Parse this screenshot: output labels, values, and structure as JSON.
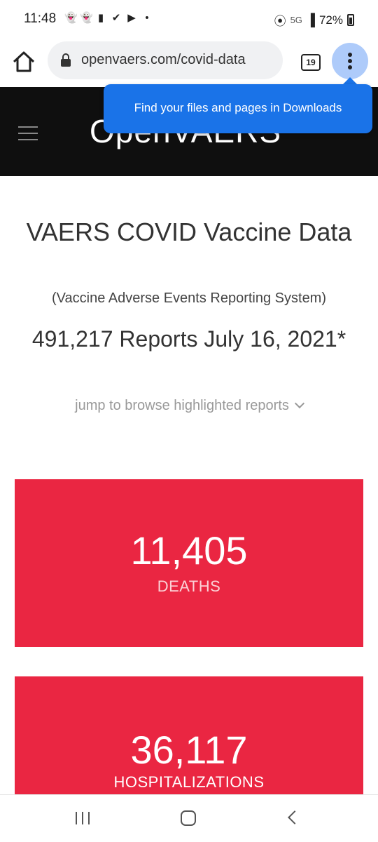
{
  "status_bar": {
    "time": "11:48",
    "network": "5G",
    "battery": "72%",
    "notification_icons": [
      "snapchat-icon",
      "snapchat-icon",
      "app-icon",
      "check-icon",
      "youtube-icon",
      "dot-icon"
    ]
  },
  "browser": {
    "url": "openvaers.com/covid-data",
    "tab_count": "19",
    "accent_color": "#aecbfa"
  },
  "tooltip": {
    "text": "Find your files and pages in Downloads",
    "color": "#1a73e8"
  },
  "site": {
    "logo": "OpenVAERS"
  },
  "main": {
    "title": "VAERS COVID Vaccine Data",
    "subtitle": "(Vaccine Adverse Events Reporting System)",
    "reports": "491,217 Reports July 16, 2021*",
    "jump_link": "jump to browse highlighted reports",
    "card_color": "#ea2642",
    "stats": [
      {
        "value": "11,405",
        "label": "DEATHS"
      },
      {
        "value": "36,117",
        "label": "HOSPITALIZATIONS"
      }
    ]
  }
}
